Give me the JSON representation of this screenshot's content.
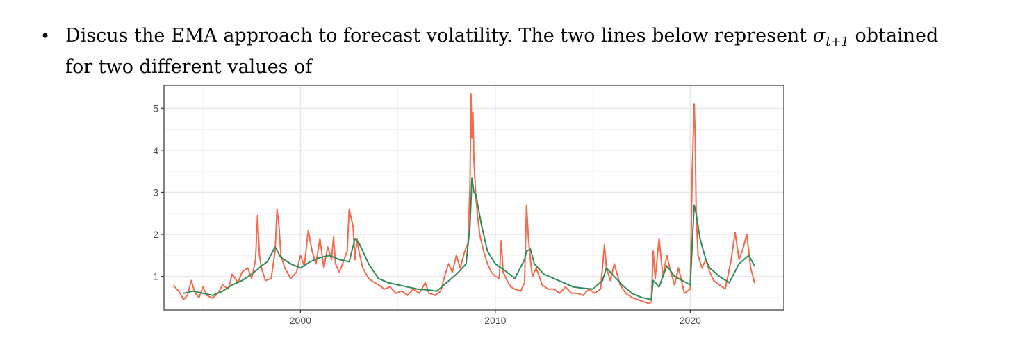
{
  "question": {
    "bullet": "•",
    "text_before": "Discus the EMA approach to forecast volatility. The two lines below represent ",
    "symbol": "σ",
    "subscript": "t+1",
    "text_after": " obtained for two different values of"
  },
  "chart_data": {
    "type": "line",
    "xlim": [
      1993.0,
      2024.8
    ],
    "ylim": [
      0.2,
      5.55
    ],
    "x_ticks": [
      2000,
      2010,
      2020
    ],
    "x_tick_labels": [
      "2000",
      "2010",
      "2020"
    ],
    "y_ticks": [
      1,
      2,
      3,
      4,
      5
    ],
    "y_tick_labels": [
      "1",
      "2",
      "3",
      "4",
      "5"
    ],
    "grid": true,
    "legend": "none",
    "series": [
      {
        "color": "#f8684a",
        "x": [
          1993.5,
          1993.8,
          1994.0,
          1994.2,
          1994.4,
          1994.6,
          1994.8,
          1995.0,
          1995.2,
          1995.5,
          1995.8,
          1996.0,
          1996.3,
          1996.5,
          1996.8,
          1997.0,
          1997.3,
          1997.5,
          1997.7,
          1997.8,
          1997.9,
          1998.0,
          1998.2,
          1998.5,
          1998.7,
          1998.8,
          1998.9,
          1999.0,
          1999.2,
          1999.5,
          1999.8,
          2000.0,
          2000.2,
          2000.4,
          2000.6,
          2000.8,
          2001.0,
          2001.2,
          2001.4,
          2001.6,
          2001.7,
          2001.8,
          2002.0,
          2002.2,
          2002.4,
          2002.5,
          2002.7,
          2002.8,
          2002.9,
          2003.0,
          2003.2,
          2003.5,
          2003.8,
          2004.0,
          2004.3,
          2004.6,
          2004.9,
          2005.2,
          2005.5,
          2005.8,
          2006.1,
          2006.4,
          2006.6,
          2006.9,
          2007.2,
          2007.4,
          2007.6,
          2007.8,
          2008.0,
          2008.2,
          2008.4,
          2008.6,
          2008.7,
          2008.75,
          2008.8,
          2008.85,
          2008.9,
          2009.0,
          2009.1,
          2009.2,
          2009.4,
          2009.6,
          2009.8,
          2010.0,
          2010.2,
          2010.3,
          2010.4,
          2010.6,
          2010.8,
          2011.0,
          2011.3,
          2011.5,
          2011.6,
          2011.7,
          2011.8,
          2011.9,
          2012.1,
          2012.4,
          2012.7,
          2013.0,
          2013.3,
          2013.6,
          2013.9,
          2014.2,
          2014.5,
          2014.8,
          2015.1,
          2015.4,
          2015.6,
          2015.7,
          2015.9,
          2016.1,
          2016.4,
          2016.7,
          2017.0,
          2017.3,
          2017.6,
          2017.9,
          2018.0,
          2018.1,
          2018.2,
          2018.4,
          2018.6,
          2018.8,
          2019.0,
          2019.2,
          2019.4,
          2019.7,
          2020.0,
          2020.1,
          2020.2,
          2020.25,
          2020.3,
          2020.35,
          2020.4,
          2020.6,
          2020.8,
          2021.0,
          2021.2,
          2021.5,
          2021.8,
          2022.1,
          2022.3,
          2022.5,
          2022.7,
          2022.9,
          2023.1,
          2023.3
        ],
        "y": [
          0.78,
          0.62,
          0.45,
          0.55,
          0.9,
          0.6,
          0.5,
          0.75,
          0.55,
          0.48,
          0.62,
          0.8,
          0.7,
          1.05,
          0.85,
          1.1,
          1.2,
          0.95,
          1.4,
          2.45,
          1.5,
          1.2,
          0.9,
          0.95,
          1.6,
          2.6,
          2.2,
          1.5,
          1.2,
          0.95,
          1.1,
          1.5,
          1.25,
          2.1,
          1.6,
          1.3,
          1.9,
          1.2,
          1.7,
          1.4,
          1.95,
          1.3,
          1.1,
          1.35,
          1.6,
          2.6,
          2.2,
          1.4,
          1.9,
          1.6,
          1.2,
          0.95,
          0.85,
          0.8,
          0.7,
          0.75,
          0.6,
          0.65,
          0.55,
          0.7,
          0.6,
          0.85,
          0.6,
          0.55,
          0.65,
          1.0,
          1.3,
          1.1,
          1.5,
          1.2,
          1.55,
          1.8,
          3.2,
          5.35,
          4.3,
          4.9,
          3.8,
          2.9,
          2.4,
          2.0,
          1.6,
          1.3,
          1.1,
          1.0,
          0.95,
          1.85,
          1.1,
          0.9,
          0.75,
          0.7,
          0.65,
          0.85,
          2.7,
          1.9,
          1.4,
          1.0,
          1.2,
          0.8,
          0.7,
          0.7,
          0.6,
          0.75,
          0.6,
          0.6,
          0.55,
          0.7,
          0.6,
          0.7,
          1.75,
          1.2,
          0.9,
          1.3,
          0.8,
          0.6,
          0.5,
          0.45,
          0.4,
          0.35,
          0.4,
          1.6,
          0.95,
          1.9,
          1.0,
          1.5,
          1.1,
          0.8,
          1.2,
          0.6,
          0.7,
          3.5,
          5.1,
          4.4,
          2.6,
          2.0,
          1.5,
          1.2,
          1.4,
          1.1,
          0.9,
          0.8,
          0.7,
          1.4,
          2.05,
          1.4,
          1.65,
          2.0,
          1.2,
          0.85
        ]
      },
      {
        "color": "#2e8b57",
        "x": [
          1994.0,
          1994.5,
          1995.0,
          1995.5,
          1996.0,
          1996.5,
          1997.0,
          1997.5,
          1998.0,
          1998.3,
          1998.7,
          1999.0,
          1999.5,
          2000.0,
          2000.5,
          2001.0,
          2001.5,
          2002.0,
          2002.5,
          2002.8,
          2003.0,
          2003.5,
          2004.0,
          2004.5,
          2005.0,
          2005.5,
          2006.0,
          2006.5,
          2007.0,
          2007.5,
          2008.0,
          2008.5,
          2008.7,
          2008.8,
          2008.9,
          2009.0,
          2009.3,
          2009.6,
          2010.0,
          2010.3,
          2010.6,
          2011.0,
          2011.5,
          2011.6,
          2011.8,
          2012.0,
          2012.5,
          2013.0,
          2013.5,
          2014.0,
          2014.5,
          2015.0,
          2015.5,
          2015.7,
          2016.0,
          2016.5,
          2017.0,
          2017.5,
          2018.0,
          2018.1,
          2018.4,
          2018.8,
          2019.2,
          2019.6,
          2020.0,
          2020.2,
          2020.3,
          2020.5,
          2020.8,
          2021.0,
          2021.5,
          2022.0,
          2022.5,
          2023.0,
          2023.3
        ],
        "y": [
          0.6,
          0.65,
          0.6,
          0.55,
          0.65,
          0.8,
          0.9,
          1.05,
          1.25,
          1.35,
          1.7,
          1.45,
          1.3,
          1.2,
          1.35,
          1.45,
          1.5,
          1.4,
          1.35,
          1.9,
          1.8,
          1.3,
          0.95,
          0.85,
          0.8,
          0.75,
          0.7,
          0.68,
          0.65,
          0.85,
          1.05,
          1.3,
          2.2,
          3.35,
          3.0,
          2.95,
          2.2,
          1.6,
          1.3,
          1.2,
          1.1,
          0.95,
          1.4,
          1.6,
          1.65,
          1.3,
          1.05,
          0.95,
          0.85,
          0.75,
          0.72,
          0.7,
          0.9,
          1.2,
          1.05,
          0.8,
          0.6,
          0.5,
          0.45,
          0.9,
          0.75,
          1.25,
          1.0,
          0.9,
          0.8,
          2.7,
          2.5,
          1.9,
          1.4,
          1.2,
          1.0,
          0.85,
          1.3,
          1.5,
          1.25
        ]
      }
    ]
  }
}
